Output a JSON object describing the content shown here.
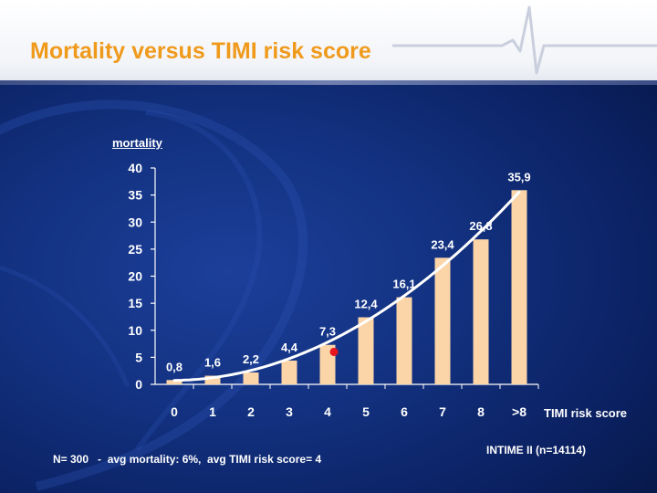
{
  "slide": {
    "title": "Mortality versus TIMI risk score",
    "footnote": "N= 300   -  avg mortality: 6%,  avg TIMI risk score= 4",
    "source": "INTIME II (n=14114)"
  },
  "colors": {
    "title": "#f09a1c",
    "bar": "#fbd5a8",
    "curve": "#ffffff",
    "marker": "#e8141e",
    "text": "#ffffff"
  },
  "chart_data": {
    "type": "bar",
    "categories": [
      "0",
      "1",
      "2",
      "3",
      "4",
      "5",
      "6",
      "7",
      "8",
      ">8"
    ],
    "values": [
      0.8,
      1.6,
      2.2,
      4.4,
      7.3,
      12.4,
      16.1,
      23.4,
      26.8,
      35.9
    ],
    "data_labels": [
      "0,8",
      "1,6",
      "2,2",
      "4,4",
      "7,3",
      "12,4",
      "16,1",
      "23,4",
      "26,8",
      "35,9"
    ],
    "ylabel": "mortality",
    "xlabel": "TIMI risk score",
    "ylim": [
      0,
      40
    ],
    "yticks": [
      0,
      5,
      10,
      15,
      20,
      25,
      30,
      35,
      40
    ],
    "grid": false,
    "trend_curve": true,
    "marker_point": {
      "category": "4",
      "value": 6
    }
  }
}
